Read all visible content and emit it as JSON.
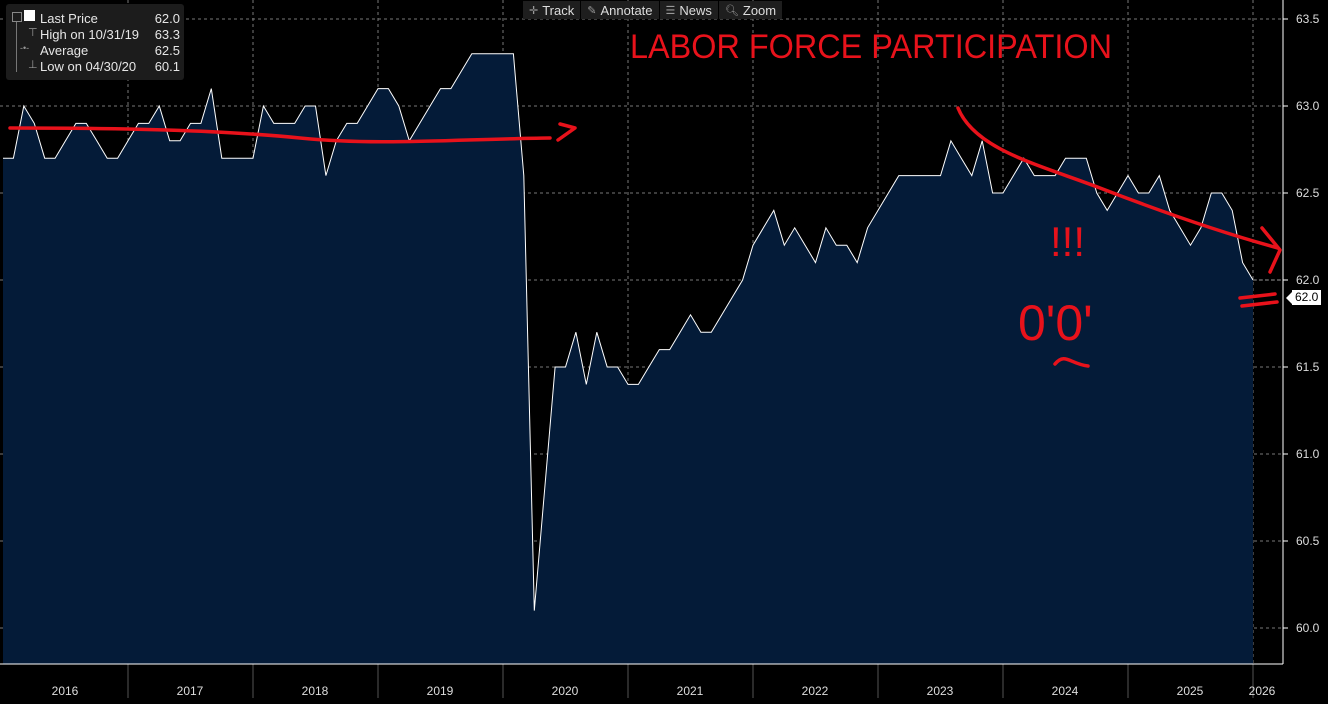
{
  "legend": {
    "last_label": "Last Price",
    "last_value": "62.0",
    "high_label": "High on 10/31/19",
    "high_value": "63.3",
    "avg_label": "Average",
    "avg_value": "62.5",
    "low_label": "Low on 04/30/20",
    "low_value": "60.1"
  },
  "toolbar": {
    "track": "Track",
    "annotate": "Annotate",
    "news": "News",
    "zoom": "Zoom"
  },
  "annotations": {
    "title": "LABOR FORCE PARTICIPATION",
    "exclaim": "!!!",
    "face": "0'0'"
  },
  "colors": {
    "area": "#041b38",
    "line": "#ffffff",
    "annotation": "#e8121b"
  },
  "chart_data": {
    "type": "area",
    "title": "LABOR FORCE PARTICIPATION",
    "xlabel": "",
    "ylabel": "",
    "x_start": "2016-01",
    "frequency": "monthly",
    "x_ticks": [
      "2016",
      "2017",
      "2018",
      "2019",
      "2020",
      "2021",
      "2022",
      "2023",
      "2024",
      "2025",
      "2026"
    ],
    "y_ticks": [
      "60.0",
      "60.5",
      "61.0",
      "61.5",
      "62.0",
      "62.5",
      "63.0",
      "63.5"
    ],
    "ylim": [
      59.9,
      63.55
    ],
    "grid": true,
    "last_value_label": "62.0",
    "values": [
      62.7,
      62.7,
      63.0,
      62.9,
      62.7,
      62.7,
      62.8,
      62.9,
      62.9,
      62.8,
      62.7,
      62.7,
      62.8,
      62.9,
      62.9,
      63.0,
      62.8,
      62.8,
      62.9,
      62.9,
      63.1,
      62.7,
      62.7,
      62.7,
      62.7,
      63.0,
      62.9,
      62.9,
      62.9,
      63.0,
      63.0,
      62.6,
      62.8,
      62.9,
      62.9,
      63.0,
      63.1,
      63.1,
      63.0,
      62.8,
      62.9,
      63.0,
      63.1,
      63.1,
      63.2,
      63.3,
      63.3,
      63.3,
      63.3,
      63.3,
      62.6,
      60.1,
      60.8,
      61.5,
      61.5,
      61.7,
      61.4,
      61.7,
      61.5,
      61.5,
      61.4,
      61.4,
      61.5,
      61.6,
      61.6,
      61.7,
      61.8,
      61.7,
      61.7,
      61.8,
      61.9,
      62.0,
      62.2,
      62.3,
      62.4,
      62.2,
      62.3,
      62.2,
      62.1,
      62.3,
      62.2,
      62.2,
      62.1,
      62.3,
      62.4,
      62.5,
      62.6,
      62.6,
      62.6,
      62.6,
      62.6,
      62.8,
      62.7,
      62.6,
      62.8,
      62.5,
      62.5,
      62.6,
      62.7,
      62.6,
      62.6,
      62.6,
      62.7,
      62.7,
      62.7,
      62.5,
      62.4,
      62.5,
      62.6,
      62.5,
      62.5,
      62.6,
      62.4,
      62.3,
      62.2,
      62.3,
      62.5,
      62.5,
      62.4,
      62.1,
      62.0
    ]
  }
}
